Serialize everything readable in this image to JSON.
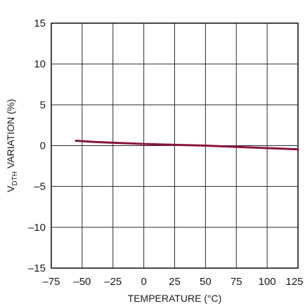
{
  "chart_data": {
    "type": "line",
    "title": "",
    "xlabel": "TEMPERATURE (°C)",
    "ylabel_main": "V",
    "ylabel_sub": "DTH",
    "ylabel_rest": " VARIATION (%)",
    "xlim": [
      -75,
      125
    ],
    "ylim": [
      -15,
      15
    ],
    "xticks": [
      -75,
      -50,
      -25,
      0,
      25,
      50,
      75,
      100,
      125
    ],
    "yticks": [
      -15,
      -10,
      -5,
      0,
      5,
      10,
      15
    ],
    "xtick_labels": [
      "–75",
      "–50",
      "–25",
      "0",
      "25",
      "50",
      "75",
      "100",
      "125"
    ],
    "ytick_labels": [
      "–15",
      "–10",
      "–5",
      "0",
      "5",
      "10",
      "15"
    ],
    "grid": true,
    "series": [
      {
        "color": "#8a1538",
        "x": [
          -55,
          -40,
          -25,
          0,
          25,
          50,
          75,
          100,
          125
        ],
        "y": [
          0.6,
          0.45,
          0.35,
          0.2,
          0.1,
          0.0,
          -0.15,
          -0.3,
          -0.45
        ]
      }
    ]
  }
}
